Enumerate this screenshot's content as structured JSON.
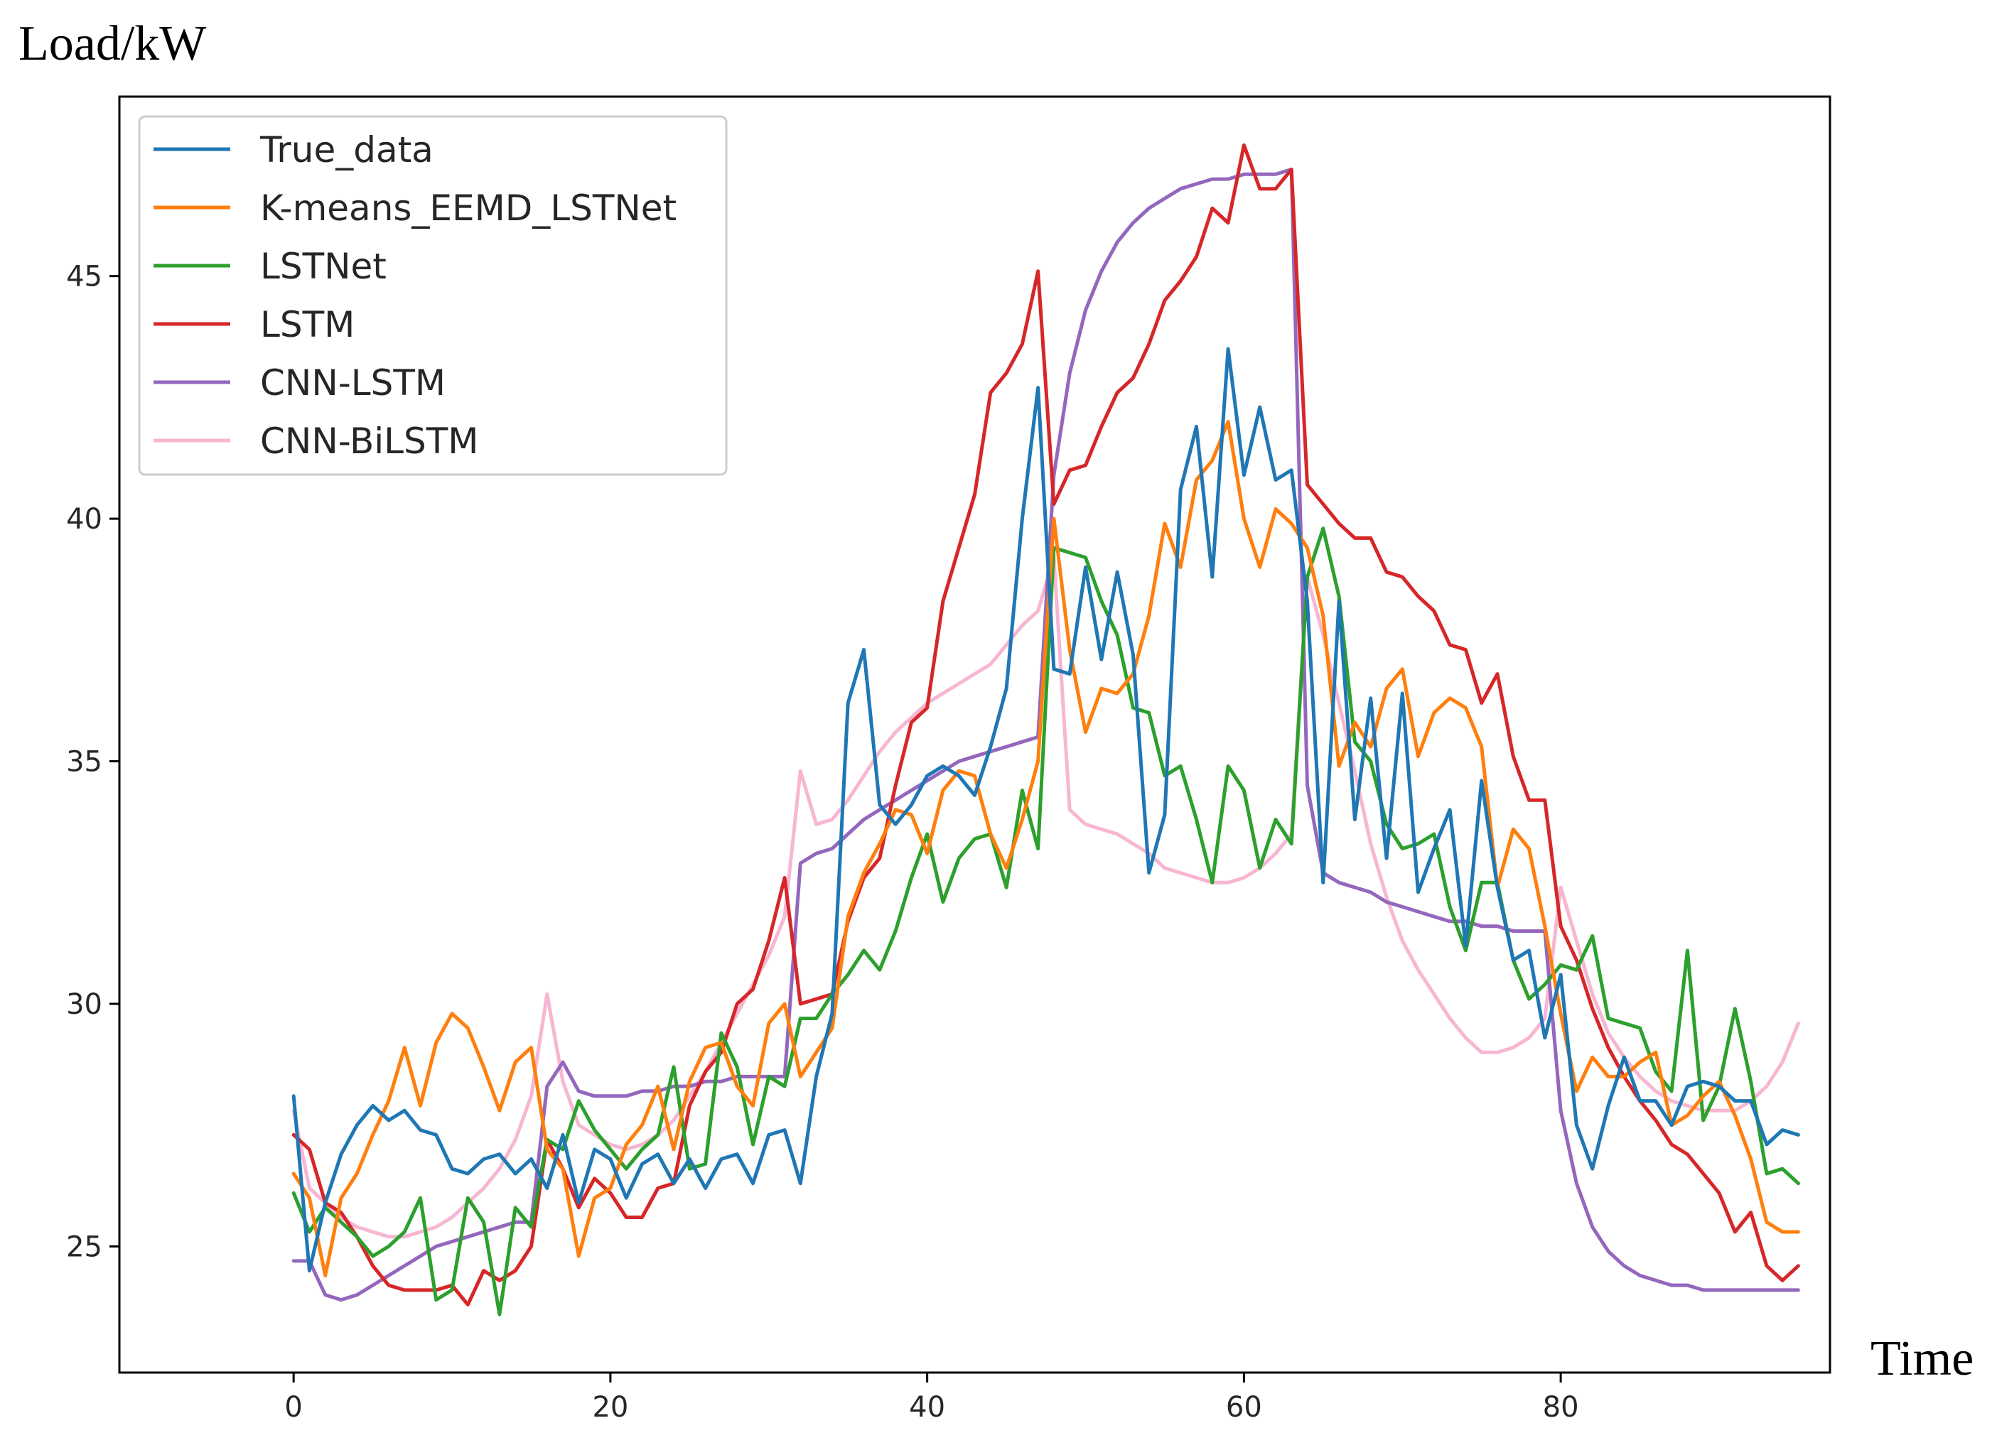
{
  "chart_data": {
    "type": "line",
    "ylabel": "Load/kW",
    "xlabel": "Time",
    "xlim": [
      -11,
      97
    ],
    "ylim": [
      22.4,
      48.7
    ],
    "xticks": [
      0,
      20,
      40,
      60,
      80
    ],
    "yticks": [
      25,
      30,
      35,
      40,
      45
    ],
    "grid": false,
    "legend_position": "upper-left",
    "series": [
      {
        "name": "True_data",
        "color": "#1f77b4",
        "x": [
          0,
          1,
          2,
          3,
          4,
          5,
          6,
          7,
          8,
          9,
          10,
          11,
          12,
          13,
          14,
          15,
          16,
          17,
          18,
          19,
          20,
          21,
          22,
          23,
          24,
          25,
          26,
          27,
          28,
          29,
          30,
          31,
          32,
          33,
          34,
          35,
          36,
          37,
          38,
          39,
          40,
          41,
          42,
          43,
          44,
          45,
          46,
          47,
          48,
          49,
          50,
          51,
          52,
          53,
          54,
          55,
          56,
          57,
          58,
          59,
          60,
          61,
          62,
          63,
          64,
          65,
          66,
          67,
          68,
          69,
          70,
          71,
          72,
          73,
          74,
          75,
          76,
          77,
          78,
          79,
          80,
          81,
          82,
          83,
          84,
          85,
          86,
          87,
          88,
          89,
          90,
          91,
          92,
          93,
          94,
          95
        ],
        "y": [
          28.1,
          24.5,
          25.9,
          26.9,
          27.5,
          27.9,
          27.6,
          27.8,
          27.4,
          27.3,
          26.6,
          26.5,
          26.8,
          26.9,
          26.5,
          26.8,
          26.2,
          27.3,
          25.9,
          27.0,
          26.8,
          26.0,
          26.7,
          26.9,
          26.3,
          26.8,
          26.2,
          26.8,
          26.9,
          26.3,
          27.3,
          27.4,
          26.3,
          28.5,
          29.8,
          36.2,
          37.3,
          34.1,
          33.7,
          34.1,
          34.7,
          34.9,
          34.7,
          34.3,
          35.3,
          36.5,
          40.0,
          42.7,
          36.9,
          36.8,
          39.0,
          37.1,
          38.9,
          37.2,
          32.7,
          33.9,
          40.6,
          41.9,
          38.8,
          43.5,
          40.9,
          42.3,
          40.8,
          41.0,
          38.3,
          32.5,
          38.3,
          33.8,
          36.3,
          33.0,
          36.4,
          32.3,
          33.2,
          34.0,
          31.2,
          34.6,
          32.4,
          30.9,
          31.1,
          29.3,
          30.6,
          27.5,
          26.6,
          27.9,
          28.9,
          28.0,
          28.0,
          27.5,
          28.3,
          28.4,
          28.3,
          28.0,
          28.0,
          27.1,
          27.4,
          27.3
        ]
      },
      {
        "name": "K-means_EEMD_LSTNet",
        "color": "#ff7f0e",
        "x": [
          0,
          1,
          2,
          3,
          4,
          5,
          6,
          7,
          8,
          9,
          10,
          11,
          12,
          13,
          14,
          15,
          16,
          17,
          18,
          19,
          20,
          21,
          22,
          23,
          24,
          25,
          26,
          27,
          28,
          29,
          30,
          31,
          32,
          33,
          34,
          35,
          36,
          37,
          38,
          39,
          40,
          41,
          42,
          43,
          44,
          45,
          46,
          47,
          48,
          49,
          50,
          51,
          52,
          53,
          54,
          55,
          56,
          57,
          58,
          59,
          60,
          61,
          62,
          63,
          64,
          65,
          66,
          67,
          68,
          69,
          70,
          71,
          72,
          73,
          74,
          75,
          76,
          77,
          78,
          79,
          80,
          81,
          82,
          83,
          84,
          85,
          86,
          87,
          88,
          89,
          90,
          91,
          92,
          93,
          94,
          95
        ],
        "y": [
          26.5,
          26.0,
          24.4,
          26.0,
          26.5,
          27.3,
          28.0,
          29.1,
          27.9,
          29.2,
          29.8,
          29.5,
          28.7,
          27.8,
          28.8,
          29.1,
          27.0,
          26.6,
          24.8,
          26.0,
          26.2,
          27.1,
          27.5,
          28.3,
          27.0,
          28.4,
          29.1,
          29.2,
          28.3,
          27.9,
          29.6,
          30.0,
          28.5,
          29.0,
          29.5,
          31.8,
          32.7,
          33.3,
          34.0,
          33.9,
          33.1,
          34.4,
          34.8,
          34.7,
          33.5,
          32.8,
          33.8,
          35.0,
          40.0,
          37.3,
          35.6,
          36.5,
          36.4,
          36.8,
          38.0,
          39.9,
          39.0,
          40.8,
          41.2,
          42.0,
          40.0,
          39.0,
          40.2,
          39.9,
          39.4,
          38.0,
          34.9,
          35.8,
          35.3,
          36.5,
          36.9,
          35.1,
          36.0,
          36.3,
          36.1,
          35.3,
          32.4,
          33.6,
          33.2,
          31.6,
          29.8,
          28.2,
          28.9,
          28.5,
          28.5,
          28.8,
          29.0,
          27.5,
          27.7,
          28.1,
          28.4,
          27.7,
          26.8,
          25.5,
          25.3,
          25.3
        ]
      },
      {
        "name": "LSTNet",
        "color": "#2ca02c",
        "x": [
          0,
          1,
          2,
          3,
          4,
          5,
          6,
          7,
          8,
          9,
          10,
          11,
          12,
          13,
          14,
          15,
          16,
          17,
          18,
          19,
          20,
          21,
          22,
          23,
          24,
          25,
          26,
          27,
          28,
          29,
          30,
          31,
          32,
          33,
          34,
          35,
          36,
          37,
          38,
          39,
          40,
          41,
          42,
          43,
          44,
          45,
          46,
          47,
          48,
          49,
          50,
          51,
          52,
          53,
          54,
          55,
          56,
          57,
          58,
          59,
          60,
          61,
          62,
          63,
          64,
          65,
          66,
          67,
          68,
          69,
          70,
          71,
          72,
          73,
          74,
          75,
          76,
          77,
          78,
          79,
          80,
          81,
          82,
          83,
          84,
          85,
          86,
          87,
          88,
          89,
          90,
          91,
          92,
          93,
          94,
          95
        ],
        "y": [
          26.1,
          25.3,
          25.8,
          25.5,
          25.2,
          24.8,
          25.0,
          25.3,
          26.0,
          23.9,
          24.1,
          26.0,
          25.5,
          23.6,
          25.8,
          25.4,
          27.2,
          27.0,
          28.0,
          27.4,
          27.0,
          26.6,
          27.0,
          27.3,
          28.7,
          26.6,
          26.7,
          29.4,
          28.7,
          27.1,
          28.5,
          28.3,
          29.7,
          29.7,
          30.2,
          30.6,
          31.1,
          30.7,
          31.5,
          32.6,
          33.5,
          32.1,
          33.0,
          33.4,
          33.5,
          32.4,
          34.4,
          33.2,
          39.4,
          39.3,
          39.2,
          38.3,
          37.6,
          36.1,
          36.0,
          34.7,
          34.9,
          33.8,
          32.5,
          34.9,
          34.4,
          32.8,
          33.8,
          33.3,
          38.8,
          39.8,
          38.4,
          35.4,
          35.0,
          33.7,
          33.2,
          33.3,
          33.5,
          32.0,
          31.1,
          32.5,
          32.5,
          30.9,
          30.1,
          30.4,
          30.8,
          30.7,
          31.4,
          29.7,
          29.6,
          29.5,
          28.6,
          28.2,
          31.1,
          27.6,
          28.3,
          29.9,
          28.4,
          26.5,
          26.6,
          26.3
        ]
      },
      {
        "name": "LSTM",
        "color": "#d62728",
        "x": [
          0,
          1,
          2,
          3,
          4,
          5,
          6,
          7,
          8,
          9,
          10,
          11,
          12,
          13,
          14,
          15,
          16,
          17,
          18,
          19,
          20,
          21,
          22,
          23,
          24,
          25,
          26,
          27,
          28,
          29,
          30,
          31,
          32,
          33,
          34,
          35,
          36,
          37,
          38,
          39,
          40,
          41,
          42,
          43,
          44,
          45,
          46,
          47,
          48,
          49,
          50,
          51,
          52,
          53,
          54,
          55,
          56,
          57,
          58,
          59,
          60,
          61,
          62,
          63,
          64,
          65,
          66,
          67,
          68,
          69,
          70,
          71,
          72,
          73,
          74,
          75,
          76,
          77,
          78,
          79,
          80,
          81,
          82,
          83,
          84,
          85,
          86,
          87,
          88,
          89,
          90,
          91,
          92,
          93,
          94,
          95
        ],
        "y": [
          27.3,
          27.0,
          25.9,
          25.7,
          25.2,
          24.6,
          24.2,
          24.1,
          24.1,
          24.1,
          24.2,
          23.8,
          24.5,
          24.3,
          24.5,
          25.0,
          27.2,
          26.6,
          25.8,
          26.4,
          26.1,
          25.6,
          25.6,
          26.2,
          26.3,
          27.9,
          28.6,
          29.0,
          30.0,
          30.3,
          31.3,
          32.6,
          30.0,
          30.1,
          30.2,
          31.7,
          32.6,
          33.0,
          34.5,
          35.8,
          36.1,
          38.3,
          39.4,
          40.5,
          42.6,
          43.0,
          43.6,
          45.1,
          40.3,
          41.0,
          41.1,
          41.9,
          42.6,
          42.9,
          43.6,
          44.5,
          44.9,
          45.4,
          46.4,
          46.1,
          47.7,
          46.8,
          46.8,
          47.2,
          40.7,
          40.3,
          39.9,
          39.6,
          39.6,
          38.9,
          38.8,
          38.4,
          38.1,
          37.4,
          37.3,
          36.2,
          36.8,
          35.1,
          34.2,
          34.2,
          31.6,
          30.9,
          29.9,
          29.1,
          28.5,
          28.0,
          27.6,
          27.1,
          26.9,
          26.5,
          26.1,
          25.3,
          25.7,
          24.6,
          24.3,
          24.6
        ]
      },
      {
        "name": "CNN-LSTM",
        "color": "#9467bd",
        "x": [
          0,
          1,
          2,
          3,
          4,
          5,
          6,
          7,
          8,
          9,
          10,
          11,
          12,
          13,
          14,
          15,
          16,
          17,
          18,
          19,
          20,
          21,
          22,
          23,
          24,
          25,
          26,
          27,
          28,
          29,
          30,
          31,
          32,
          33,
          34,
          35,
          36,
          37,
          38,
          39,
          40,
          41,
          42,
          43,
          44,
          45,
          46,
          47,
          48,
          49,
          50,
          51,
          52,
          53,
          54,
          55,
          56,
          57,
          58,
          59,
          60,
          61,
          62,
          63,
          64,
          65,
          66,
          67,
          68,
          69,
          70,
          71,
          72,
          73,
          74,
          75,
          76,
          77,
          78,
          79,
          80,
          81,
          82,
          83,
          84,
          85,
          86,
          87,
          88,
          89,
          90,
          91,
          92,
          93,
          94,
          95
        ],
        "y": [
          24.7,
          24.7,
          24.0,
          23.9,
          24.0,
          24.2,
          24.4,
          24.6,
          24.8,
          25.0,
          25.1,
          25.2,
          25.3,
          25.4,
          25.5,
          25.5,
          28.3,
          28.8,
          28.2,
          28.1,
          28.1,
          28.1,
          28.2,
          28.2,
          28.3,
          28.3,
          28.4,
          28.4,
          28.5,
          28.5,
          28.5,
          28.5,
          32.9,
          33.1,
          33.2,
          33.5,
          33.8,
          34.0,
          34.2,
          34.4,
          34.6,
          34.8,
          35.0,
          35.1,
          35.2,
          35.3,
          35.4,
          35.5,
          40.9,
          43.0,
          44.3,
          45.1,
          45.7,
          46.1,
          46.4,
          46.6,
          46.8,
          46.9,
          47.0,
          47.0,
          47.1,
          47.1,
          47.1,
          47.2,
          34.5,
          32.7,
          32.5,
          32.4,
          32.3,
          32.1,
          32.0,
          31.9,
          31.8,
          31.7,
          31.7,
          31.6,
          31.6,
          31.5,
          31.5,
          31.5,
          27.8,
          26.3,
          25.4,
          24.9,
          24.6,
          24.4,
          24.3,
          24.2,
          24.2,
          24.1,
          24.1,
          24.1,
          24.1,
          24.1,
          24.1,
          24.1
        ]
      },
      {
        "name": "CNN-BiLSTM",
        "color": "#f7b6d2",
        "x": [
          0,
          1,
          2,
          3,
          4,
          5,
          6,
          7,
          8,
          9,
          10,
          11,
          12,
          13,
          14,
          15,
          16,
          17,
          18,
          19,
          20,
          21,
          22,
          23,
          24,
          25,
          26,
          27,
          28,
          29,
          30,
          31,
          32,
          33,
          34,
          35,
          36,
          37,
          38,
          39,
          40,
          41,
          42,
          43,
          44,
          45,
          46,
          47,
          48,
          49,
          50,
          51,
          52,
          53,
          54,
          55,
          56,
          57,
          58,
          59,
          60,
          61,
          62,
          63,
          64,
          65,
          66,
          67,
          68,
          69,
          70,
          71,
          72,
          73,
          74,
          75,
          76,
          77,
          78,
          79,
          80,
          81,
          82,
          83,
          84,
          85,
          86,
          87,
          88,
          89,
          90,
          91,
          92,
          93,
          94,
          95
        ],
        "y": [
          27.8,
          26.2,
          25.9,
          25.6,
          25.4,
          25.3,
          25.2,
          25.2,
          25.3,
          25.4,
          25.6,
          25.9,
          26.2,
          26.6,
          27.2,
          28.1,
          30.2,
          28.4,
          27.5,
          27.3,
          27.1,
          27.0,
          27.1,
          27.3,
          27.6,
          28.1,
          28.6,
          29.2,
          29.8,
          30.4,
          31.0,
          31.8,
          34.8,
          33.7,
          33.8,
          34.2,
          34.7,
          35.2,
          35.6,
          35.9,
          36.2,
          36.4,
          36.6,
          36.8,
          37.0,
          37.4,
          37.8,
          38.1,
          39.2,
          34.0,
          33.7,
          33.6,
          33.5,
          33.3,
          33.1,
          32.8,
          32.7,
          32.6,
          32.5,
          32.5,
          32.6,
          32.8,
          33.1,
          33.5,
          38.8,
          37.6,
          36.2,
          34.8,
          33.3,
          32.2,
          31.3,
          30.7,
          30.2,
          29.7,
          29.3,
          29.0,
          29.0,
          29.1,
          29.3,
          29.7,
          32.4,
          31.3,
          30.2,
          29.4,
          28.9,
          28.5,
          28.2,
          28.0,
          27.9,
          27.8,
          27.8,
          27.8,
          28.0,
          28.3,
          28.8,
          29.6
        ]
      }
    ]
  }
}
